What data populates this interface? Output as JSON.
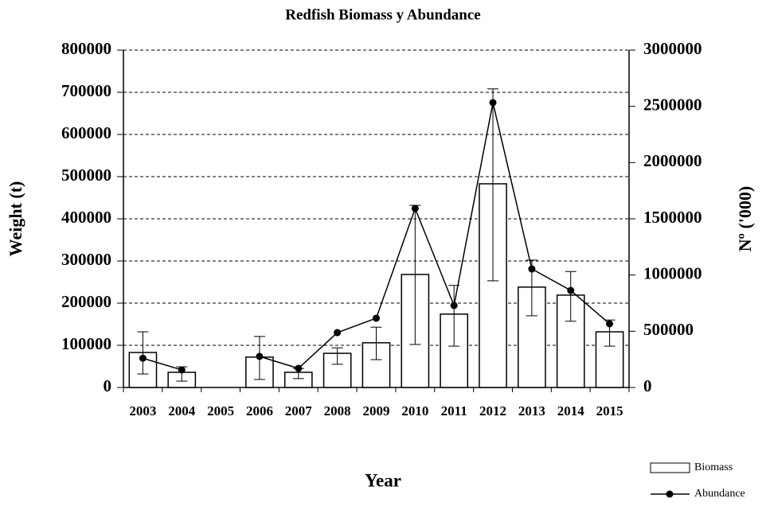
{
  "chart_data": {
    "type": "bar_line",
    "title": "Redfish Biomass y Abundance",
    "x_label": "Year",
    "y_label": "Weight (t)",
    "y2_label": "Nº ('000)",
    "categories": [
      "2003",
      "2004",
      "2005",
      "2006",
      "2007",
      "2008",
      "2009",
      "2010",
      "2011",
      "2012",
      "2013",
      "2014",
      "2015"
    ],
    "series": [
      {
        "name": "Biomass",
        "type": "bar",
        "color": "#ffffff",
        "values": [
          83000,
          36000,
          null,
          72000,
          36000,
          81000,
          106000,
          268000,
          174000,
          483000,
          238000,
          219000,
          132000
        ],
        "error_low": [
          32000,
          15000,
          null,
          19000,
          21000,
          55000,
          66000,
          102000,
          98000,
          253000,
          170000,
          157000,
          98000
        ],
        "error_high": [
          132000,
          49000,
          null,
          121000,
          45000,
          94000,
          143000,
          432000,
          242000,
          708000,
          302000,
          275000,
          160000
        ]
      },
      {
        "name": "Abundance",
        "type": "line",
        "axis": "y2",
        "color": "#000000",
        "values": [
          260000,
          156000,
          null,
          276000,
          170000,
          488000,
          616000,
          1592000,
          729000,
          2533000,
          1054000,
          863000,
          566000
        ]
      }
    ],
    "ylim": [
      0,
      800000
    ],
    "yticks": [
      0,
      100000,
      200000,
      300000,
      400000,
      500000,
      600000,
      700000,
      800000
    ],
    "y2lim": [
      0,
      3000000
    ],
    "y2ticks": [
      0,
      500000,
      1000000,
      1500000,
      2000000,
      2500000,
      3000000
    ],
    "grid": true,
    "legend": "bottom-right"
  }
}
